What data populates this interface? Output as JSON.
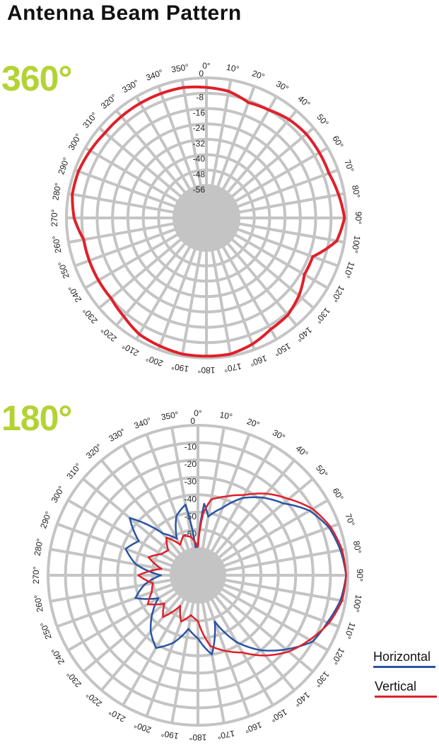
{
  "page": {
    "title": "Antenna Beam Pattern"
  },
  "colors": {
    "label": "#b3d334",
    "grid": "#c4c4c4",
    "horizontal": "#2a54a3",
    "vertical": "#e0202a"
  },
  "chart_data": [
    {
      "type": "polar",
      "panel_label": "360°",
      "r_ticks": [
        "0",
        "-8",
        "-16",
        "-24",
        "-32",
        "-40",
        "-48",
        "-56"
      ],
      "r_range": [
        -56,
        0
      ],
      "angle_labels": [
        "0°",
        "10°",
        "20°",
        "30°",
        "40°",
        "50°",
        "60°",
        "70°",
        "80°",
        "90°",
        "100°",
        "110°",
        "120°",
        "130°",
        "140°",
        "150°",
        "160°",
        "170°",
        "180°",
        "190°",
        "200°",
        "210°",
        "220°",
        "230°",
        "240°",
        "250°",
        "260°",
        "270°",
        "280°",
        "290°",
        "300°",
        "310°",
        "320°",
        "330°",
        "340°",
        "350°"
      ],
      "series": [
        {
          "color": "#e0202a",
          "angles": [
            0,
            10,
            20,
            30,
            40,
            50,
            60,
            70,
            80,
            90,
            100,
            110,
            120,
            130,
            140,
            150,
            160,
            170,
            180,
            190,
            200,
            210,
            220,
            230,
            240,
            250,
            260,
            270,
            280,
            290,
            300,
            310,
            320,
            330,
            340,
            350
          ],
          "values": [
            -5,
            -6,
            -9,
            -8,
            -6,
            -5,
            -5,
            -5,
            -3,
            -1,
            -4,
            -14,
            -14,
            -10,
            -7,
            -6,
            -3,
            -1,
            -1,
            -1,
            -2,
            -3,
            -6,
            -8,
            -8,
            -8,
            -8,
            -4,
            -2,
            -2,
            -3,
            -4,
            -4,
            -4,
            -4,
            -4
          ]
        }
      ]
    },
    {
      "type": "polar",
      "panel_label": "180°",
      "r_ticks": [
        "0",
        "-10",
        "-20",
        "-30",
        "-40",
        "-50",
        "-60"
      ],
      "r_range": [
        -70,
        0
      ],
      "angle_labels": [
        "0°",
        "10°",
        "20°",
        "30°",
        "40°",
        "50°",
        "60°",
        "70°",
        "80°",
        "90°",
        "100°",
        "110°",
        "120°",
        "130°",
        "140°",
        "150°",
        "160°",
        "170°",
        "180°",
        "190°",
        "200°",
        "210°",
        "220°",
        "230°",
        "240°",
        "250°",
        "260°",
        "270°",
        "280°",
        "290°",
        "300°",
        "310°",
        "320°",
        "330°",
        "340°",
        "350°"
      ],
      "series": [
        {
          "name": "Horizontal",
          "color": "#2a54a3",
          "angles": [
            0,
            5,
            10,
            20,
            30,
            40,
            50,
            60,
            70,
            80,
            90,
            100,
            110,
            120,
            130,
            140,
            150,
            160,
            170,
            180,
            190,
            200,
            210,
            220,
            230,
            240,
            250,
            260,
            270,
            280,
            290,
            300,
            310,
            320,
            330,
            340,
            350,
            355
          ],
          "values": [
            -70,
            -45,
            -52,
            -45,
            -35,
            -28,
            -22,
            -12,
            -6,
            -3,
            -1,
            -3,
            -7,
            -10,
            -20,
            -30,
            -42,
            -58,
            -40,
            -50,
            -55,
            -45,
            -38,
            -44,
            -52,
            -60,
            -48,
            -55,
            -65,
            -50,
            -42,
            -47,
            -35,
            -55,
            -62,
            -50,
            -45,
            -70
          ]
        },
        {
          "name": "Vertical",
          "color": "#e0202a",
          "angles": [
            0,
            2,
            5,
            10,
            20,
            30,
            40,
            50,
            60,
            70,
            80,
            90,
            100,
            110,
            120,
            130,
            140,
            150,
            160,
            170,
            180,
            190,
            200,
            210,
            220,
            230,
            240,
            250,
            260,
            270,
            280,
            290,
            300,
            310,
            320,
            330,
            340,
            350
          ],
          "values": [
            -70,
            -62,
            -50,
            -42,
            -38,
            -33,
            -25,
            -18,
            -10,
            -5,
            -2,
            -1,
            -2,
            -6,
            -12,
            -18,
            -26,
            -35,
            -40,
            -45,
            -60,
            -63,
            -58,
            -66,
            -55,
            -61,
            -53,
            -58,
            -60,
            -52,
            -65,
            -56,
            -62,
            -64,
            -58,
            -66,
            -62,
            -64
          ]
        }
      ]
    }
  ],
  "legend": {
    "horizontal": "Horizontal",
    "vertical": "Vertical"
  }
}
